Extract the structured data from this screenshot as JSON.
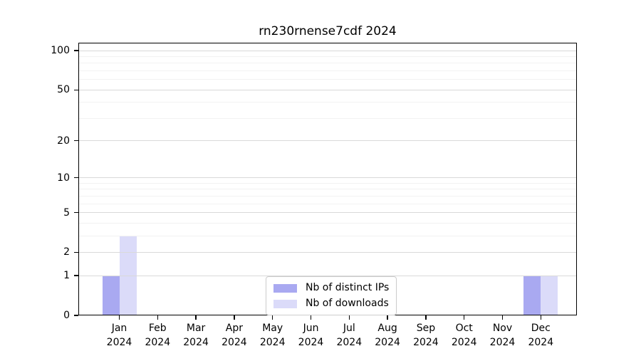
{
  "title": "rn230rnense7cdf 2024",
  "chart_data": {
    "type": "bar",
    "title": "rn230rnense7cdf 2024",
    "categories": [
      {
        "month": "Jan",
        "year": "2024"
      },
      {
        "month": "Feb",
        "year": "2024"
      },
      {
        "month": "Mar",
        "year": "2024"
      },
      {
        "month": "Apr",
        "year": "2024"
      },
      {
        "month": "May",
        "year": "2024"
      },
      {
        "month": "Jun",
        "year": "2024"
      },
      {
        "month": "Jul",
        "year": "2024"
      },
      {
        "month": "Aug",
        "year": "2024"
      },
      {
        "month": "Sep",
        "year": "2024"
      },
      {
        "month": "Oct",
        "year": "2024"
      },
      {
        "month": "Nov",
        "year": "2024"
      },
      {
        "month": "Dec",
        "year": "2024"
      }
    ],
    "series": [
      {
        "name": "Nb of distinct IPs",
        "color": "#a9a9f1",
        "values": [
          1,
          0,
          0,
          0,
          0,
          0,
          0,
          0,
          0,
          0,
          0,
          1
        ]
      },
      {
        "name": "Nb of downloads",
        "color": "#dbdbf9",
        "values": [
          3,
          0,
          0,
          0,
          0,
          0,
          0,
          0,
          0,
          0,
          0,
          1
        ]
      }
    ],
    "xlabel": "",
    "ylabel": "",
    "yscale": "log1p",
    "ylim": [
      0,
      115
    ],
    "yticks": [
      0,
      1,
      2,
      5,
      10,
      20,
      50,
      100
    ],
    "minor_yticks": [
      3,
      4,
      6,
      7,
      8,
      9,
      30,
      40,
      60,
      70,
      80,
      90
    ],
    "grid": true,
    "major_grid_color": "#d9d9d9",
    "minor_grid_color": "#f2f2f2",
    "legend_position": "bottom-center"
  }
}
